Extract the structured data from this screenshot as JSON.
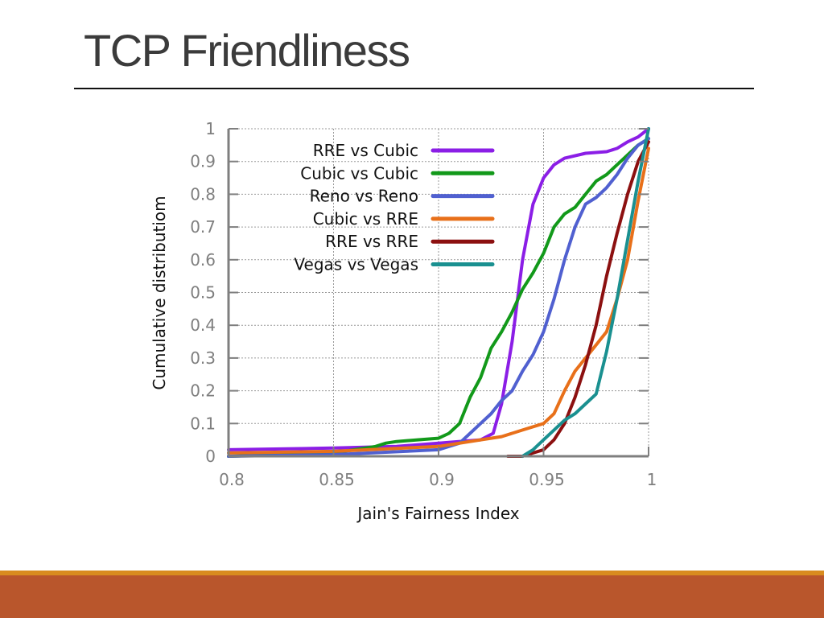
{
  "slide": {
    "title": "TCP Friendliness",
    "footer_stripe_color": "#d98c1f",
    "footer_color": "#b9562c"
  },
  "chart_data": {
    "type": "line",
    "title": "",
    "xlabel": "Jain's Fairness Index",
    "ylabel": "Cumulative distributiom",
    "xlim": [
      0.8,
      1
    ],
    "ylim": [
      0,
      1
    ],
    "x_ticks": [
      0.8,
      0.85,
      0.9,
      0.95,
      1
    ],
    "x_tick_labels": [
      "0.8",
      "0.85",
      "0.9",
      "0.95",
      "1"
    ],
    "y_ticks": [
      0,
      0.1,
      0.2,
      0.3,
      0.4,
      0.5,
      0.6,
      0.7,
      0.8,
      0.9,
      1
    ],
    "y_tick_labels": [
      "0",
      "0.1",
      "0.2",
      "0.3",
      "0.4",
      "0.5",
      "0.6",
      "0.7",
      "0.8",
      "0.9",
      "1"
    ],
    "grid": true,
    "legend_position": "top-left",
    "series": [
      {
        "name": "RRE vs Cubic",
        "color": "#8b1ee6",
        "x": [
          0.8,
          0.85,
          0.88,
          0.9,
          0.92,
          0.926,
          0.93,
          0.935,
          0.94,
          0.945,
          0.95,
          0.955,
          0.96,
          0.97,
          0.98,
          0.985,
          0.99,
          0.995,
          1.0
        ],
        "y": [
          0.02,
          0.025,
          0.03,
          0.04,
          0.05,
          0.07,
          0.16,
          0.35,
          0.6,
          0.77,
          0.85,
          0.89,
          0.91,
          0.925,
          0.93,
          0.94,
          0.96,
          0.975,
          1.0
        ]
      },
      {
        "name": "Cubic vs Cubic",
        "color": "#12991a",
        "x": [
          0.8,
          0.85,
          0.87,
          0.875,
          0.88,
          0.89,
          0.9,
          0.905,
          0.91,
          0.915,
          0.92,
          0.925,
          0.93,
          0.935,
          0.94,
          0.945,
          0.95,
          0.955,
          0.96,
          0.965,
          0.97,
          0.975,
          0.98,
          0.985,
          0.99,
          0.995,
          1.0
        ],
        "y": [
          0.0,
          0.01,
          0.03,
          0.04,
          0.045,
          0.05,
          0.055,
          0.07,
          0.1,
          0.18,
          0.24,
          0.33,
          0.38,
          0.44,
          0.51,
          0.56,
          0.62,
          0.7,
          0.74,
          0.76,
          0.8,
          0.84,
          0.86,
          0.89,
          0.92,
          0.95,
          0.97
        ]
      },
      {
        "name": "Reno vs Reno",
        "color": "#5060d0",
        "x": [
          0.8,
          0.85,
          0.9,
          0.91,
          0.915,
          0.92,
          0.925,
          0.93,
          0.935,
          0.94,
          0.945,
          0.95,
          0.955,
          0.96,
          0.965,
          0.97,
          0.975,
          0.98,
          0.985,
          0.99,
          0.995,
          1.0
        ],
        "y": [
          0.0,
          0.005,
          0.02,
          0.04,
          0.07,
          0.1,
          0.13,
          0.17,
          0.2,
          0.26,
          0.31,
          0.38,
          0.48,
          0.6,
          0.7,
          0.77,
          0.79,
          0.82,
          0.86,
          0.91,
          0.95,
          0.97
        ]
      },
      {
        "name": "Cubic vs RRE",
        "color": "#e8701a",
        "x": [
          0.8,
          0.85,
          0.9,
          0.92,
          0.93,
          0.94,
          0.95,
          0.955,
          0.96,
          0.965,
          0.97,
          0.975,
          0.98,
          0.985,
          0.99,
          0.995,
          1.0
        ],
        "y": [
          0.01,
          0.015,
          0.03,
          0.05,
          0.06,
          0.08,
          0.1,
          0.13,
          0.2,
          0.26,
          0.3,
          0.34,
          0.38,
          0.48,
          0.6,
          0.78,
          0.94
        ]
      },
      {
        "name": "RRE vs RRE",
        "color": "#8c1010",
        "x": [
          0.933,
          0.94,
          0.945,
          0.95,
          0.955,
          0.96,
          0.965,
          0.97,
          0.975,
          0.98,
          0.985,
          0.99,
          0.995,
          1.0
        ],
        "y": [
          0.0,
          0.0,
          0.01,
          0.02,
          0.05,
          0.1,
          0.18,
          0.28,
          0.4,
          0.55,
          0.68,
          0.8,
          0.9,
          0.96
        ]
      },
      {
        "name": "Vegas vs Vegas",
        "color": "#1a9090",
        "x": [
          0.94,
          0.945,
          0.95,
          0.955,
          0.96,
          0.965,
          0.97,
          0.975,
          0.98,
          0.985,
          0.99,
          0.995,
          1.0
        ],
        "y": [
          0.0,
          0.02,
          0.05,
          0.08,
          0.11,
          0.13,
          0.16,
          0.19,
          0.32,
          0.48,
          0.66,
          0.84,
          1.0
        ]
      }
    ]
  }
}
